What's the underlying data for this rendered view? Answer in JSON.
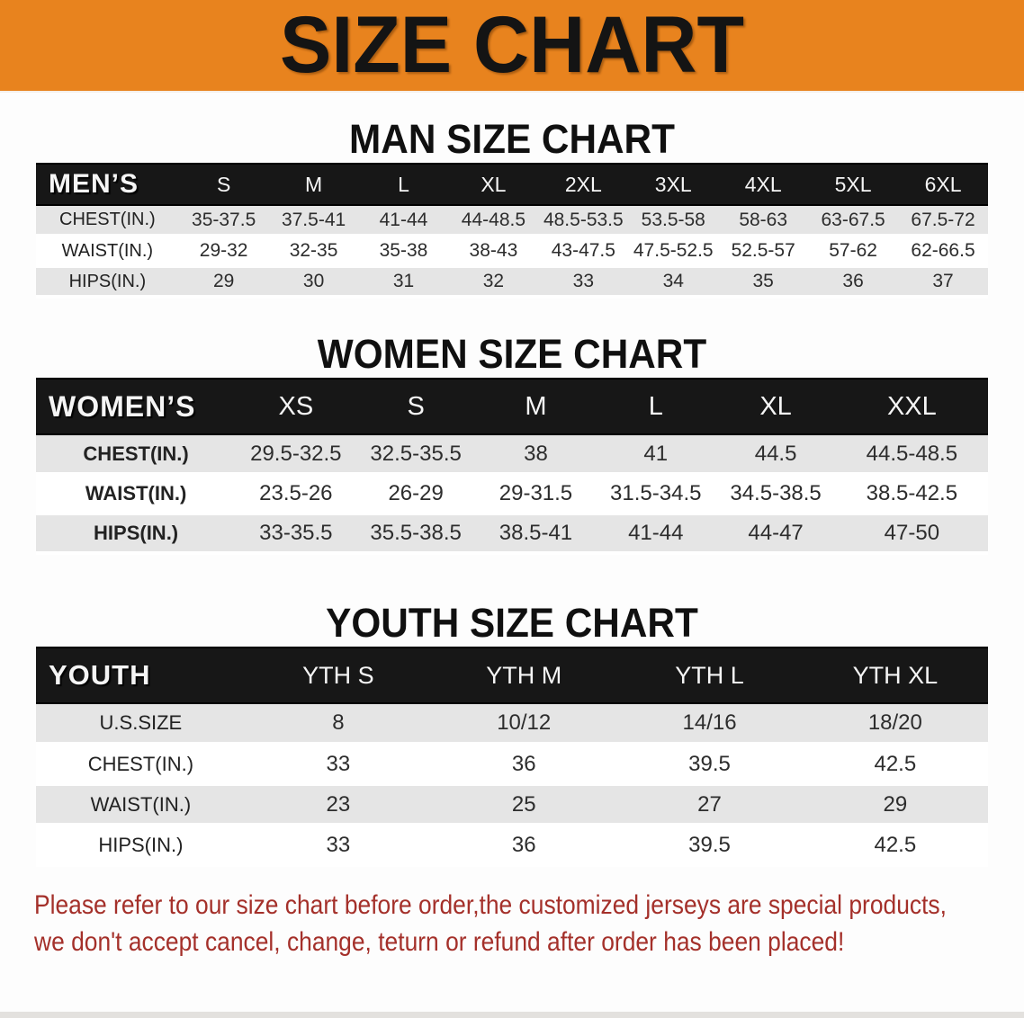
{
  "banner": {
    "title": "SIZE CHART",
    "bg_color": "#e8831e",
    "text_color": "#141414"
  },
  "sections": {
    "men": {
      "title": "MAN SIZE CHART",
      "header_label": "MEN’S",
      "columns": [
        "S",
        "M",
        "L",
        "XL",
        "2XL",
        "3XL",
        "4XL",
        "5XL",
        "6XL"
      ],
      "rows": [
        {
          "label": "CHEST(IN.)",
          "values": [
            "35-37.5",
            "37.5-41",
            "41-44",
            "44-48.5",
            "48.5-53.5",
            "53.5-58",
            "58-63",
            "63-67.5",
            "67.5-72"
          ]
        },
        {
          "label": "WAIST(IN.)",
          "values": [
            "29-32",
            "32-35",
            "35-38",
            "38-43",
            "43-47.5",
            "47.5-52.5",
            "52.5-57",
            "57-62",
            "62-66.5"
          ]
        },
        {
          "label": "HIPS(IN.)",
          "values": [
            "29",
            "30",
            "31",
            "32",
            "33",
            "34",
            "35",
            "36",
            "37"
          ]
        }
      ]
    },
    "women": {
      "title": "WOMEN SIZE CHART",
      "header_label": "WOMEN’S",
      "columns": [
        "XS",
        "S",
        "M",
        "L",
        "XL",
        "XXL"
      ],
      "rows": [
        {
          "label": "CHEST(IN.)",
          "values": [
            "29.5-32.5",
            "32.5-35.5",
            "38",
            "41",
            "44.5",
            "44.5-48.5"
          ]
        },
        {
          "label": "WAIST(IN.)",
          "values": [
            "23.5-26",
            "26-29",
            "29-31.5",
            "31.5-34.5",
            "34.5-38.5",
            "38.5-42.5"
          ]
        },
        {
          "label": "HIPS(IN.)",
          "values": [
            "33-35.5",
            "35.5-38.5",
            "38.5-41",
            "41-44",
            "44-47",
            "47-50"
          ]
        }
      ]
    },
    "youth": {
      "title": "YOUTH SIZE CHART",
      "header_label": "YOUTH",
      "columns": [
        "YTH S",
        "YTH M",
        "YTH L",
        "YTH XL"
      ],
      "rows": [
        {
          "label": "U.S.SIZE",
          "values": [
            "8",
            "10/12",
            "14/16",
            "18/20"
          ]
        },
        {
          "label": "CHEST(IN.)",
          "values": [
            "33",
            "36",
            "39.5",
            "42.5"
          ]
        },
        {
          "label": "WAIST(IN.)",
          "values": [
            "23",
            "25",
            "27",
            "29"
          ]
        },
        {
          "label": "HIPS(IN.)",
          "values": [
            "33",
            "36",
            "39.5",
            "42.5"
          ]
        }
      ]
    }
  },
  "footer": {
    "line1": "Please refer to our size chart before order,the customized jerseys are special products,",
    "line2": "we don't accept cancel, change, teturn or refund after order has been placed!",
    "text_color": "#a4302a"
  }
}
